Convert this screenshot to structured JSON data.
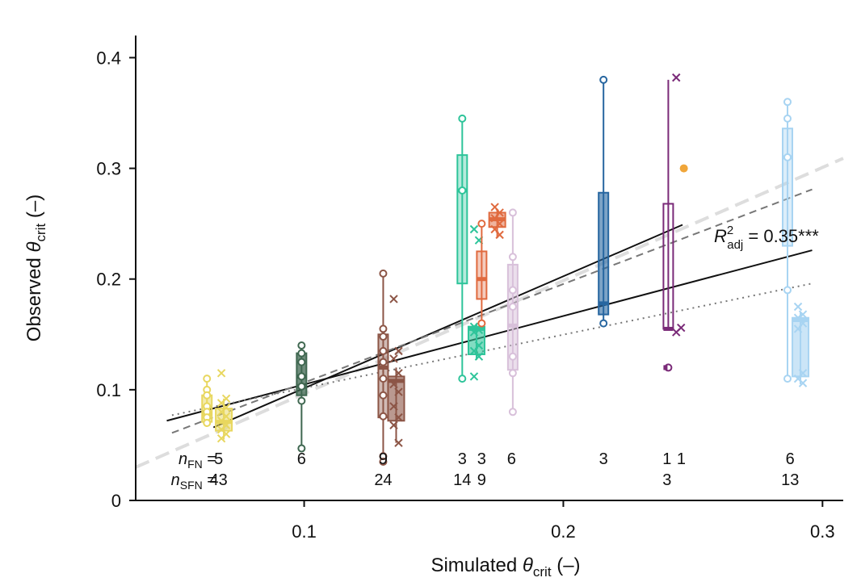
{
  "chart_data": {
    "type": "boxplot-scatter",
    "title": "",
    "xlabel": {
      "prefix": "Simulated ",
      "symbol": "θ",
      "sub": "crit",
      "suffix": " (–)"
    },
    "ylabel": {
      "prefix": "Observed ",
      "symbol": "θ",
      "sub": "crit",
      "suffix": " (–)"
    },
    "xlim": [
      0.035,
      0.308
    ],
    "ylim": [
      0,
      0.42
    ],
    "x_ticks": [
      {
        "value": 0.1,
        "label": "0.1"
      },
      {
        "value": 0.2,
        "label": "0.2"
      },
      {
        "value": 0.3,
        "label": "0.3"
      }
    ],
    "y_ticks": [
      {
        "value": 0,
        "label": "0"
      },
      {
        "value": 0.1,
        "label": "0.1"
      },
      {
        "value": 0.2,
        "label": "0.2"
      },
      {
        "value": 0.3,
        "label": "0.3"
      },
      {
        "value": 0.4,
        "label": "0.4"
      }
    ],
    "annotation": {
      "base": "R",
      "sup": "2",
      "sub": "adj",
      "text": " = 0.35***"
    },
    "count_row_labels": {
      "fn": {
        "base": "n",
        "sub": "FN",
        "eq": " ="
      },
      "sfn": {
        "base": "n",
        "sub": "SFN",
        "eq": " ="
      }
    },
    "counts": [
      {
        "x": 0.067,
        "fn": "5",
        "sfn": "43"
      },
      {
        "x": 0.099,
        "fn": "6",
        "sfn": ""
      },
      {
        "x": 0.1305,
        "fn": "9",
        "sfn": "24"
      },
      {
        "x": 0.161,
        "fn": "3",
        "sfn": "14"
      },
      {
        "x": 0.1685,
        "fn": "3",
        "sfn": "9"
      },
      {
        "x": 0.18,
        "fn": "6",
        "sfn": ""
      },
      {
        "x": 0.2155,
        "fn": "3",
        "sfn": ""
      },
      {
        "x": 0.24,
        "fn": "1",
        "sfn": "3"
      },
      {
        "x": 0.2455,
        "fn": "1",
        "sfn": ""
      },
      {
        "x": 0.2875,
        "fn": "6",
        "sfn": "13"
      }
    ],
    "series": [
      {
        "name": "group-1-FN",
        "color": "#e8d75f",
        "x": 0.0625,
        "kind": "FN",
        "box": [
          0.071,
          0.078,
          0.095
        ],
        "whisker": [
          0.07,
          0.11
        ],
        "points": [
          0.11,
          0.1,
          0.095,
          0.085,
          0.08,
          0.075,
          0.07
        ],
        "alpha": 0.5
      },
      {
        "name": "group-1-SFN",
        "color": "#e8d75f",
        "x": 0.069,
        "kind": "SFN",
        "box": [
          0.063,
          0.071,
          0.083
        ],
        "whisker": [
          0.055,
          0.092
        ],
        "points": [
          0.115,
          0.092,
          0.088,
          0.084,
          0.08,
          0.076,
          0.072,
          0.068,
          0.064,
          0.06,
          0.056
        ],
        "alpha": 0.5
      },
      {
        "name": "group-2-FN",
        "color": "#3f6750",
        "x": 0.099,
        "kind": "FN",
        "box": [
          0.095,
          0.112,
          0.133
        ],
        "whisker": [
          0.047,
          0.14
        ],
        "points": [
          0.14,
          0.133,
          0.125,
          0.112,
          0.103,
          0.09,
          0.047
        ],
        "alpha": 0.75
      },
      {
        "name": "group-3-FN",
        "color": "#8c5546",
        "x": 0.1305,
        "kind": "FN",
        "box": [
          0.075,
          0.12,
          0.15
        ],
        "whisker": [
          0.035,
          0.205
        ],
        "points": [
          0.205,
          0.155,
          0.148,
          0.135,
          0.125,
          0.11,
          0.095,
          0.076,
          0.04,
          0.035
        ],
        "alpha": 0.4
      },
      {
        "name": "group-3-SFN",
        "color": "#8c5546",
        "x": 0.1355,
        "kind": "SFN",
        "box": [
          0.072,
          0.108,
          0.112
        ],
        "whisker": [
          0.052,
          0.12
        ],
        "points": [
          0.182,
          0.135,
          0.128,
          0.115,
          0.105,
          0.098,
          0.085,
          0.075,
          0.068,
          0.052
        ],
        "alpha": 0.6
      },
      {
        "name": "group-4-FN",
        "color": "#2ec49a",
        "x": 0.161,
        "kind": "FN",
        "box": [
          0.196,
          0.28,
          0.312
        ],
        "whisker": [
          0.11,
          0.345
        ],
        "points": [
          0.345,
          0.28,
          0.11
        ],
        "alpha": 0.35
      },
      {
        "name": "group-4-SFN",
        "color": "#2ec49a",
        "x": 0.1665,
        "kind": "SFN",
        "box": [
          0.132,
          0.155,
          0.157
        ],
        "whisker": [
          0.127,
          0.16
        ],
        "points": [
          0.245,
          0.235,
          0.157,
          0.154,
          0.152,
          0.14,
          0.135,
          0.13,
          0.112
        ],
        "alpha": 0.6
      },
      {
        "name": "group-5-FN",
        "color": "#e06a3f",
        "x": 0.1685,
        "kind": "FN",
        "box": [
          0.182,
          0.2,
          0.225
        ],
        "whisker": [
          0.16,
          0.25
        ],
        "points": [
          0.25,
          0.16
        ],
        "alpha": 0.35
      },
      {
        "name": "group-5-SFN",
        "color": "#e06a3f",
        "x": 0.1745,
        "kind": "SFN",
        "box": [
          0.247,
          0.254,
          0.26
        ],
        "whisker": [
          0.237,
          0.262
        ],
        "points": [
          0.265,
          0.26,
          0.255,
          0.25,
          0.245,
          0.24
        ],
        "alpha": 0.5
      },
      {
        "name": "group-6-FN",
        "color": "#d8c0da",
        "x": 0.1805,
        "kind": "FN",
        "box": [
          0.118,
          0.158,
          0.213
        ],
        "whisker": [
          0.08,
          0.26
        ],
        "points": [
          0.26,
          0.22,
          0.19,
          0.175,
          0.13,
          0.115,
          0.08
        ],
        "alpha": 0.5
      },
      {
        "name": "group-7-FN",
        "color": "#2766a0",
        "x": 0.2155,
        "kind": "FN",
        "box": [
          0.168,
          0.178,
          0.278
        ],
        "whisker": [
          0.16,
          0.38
        ],
        "points": [
          0.38,
          0.16
        ],
        "alpha": 0.6
      },
      {
        "name": "group-8-FN",
        "color": "#7a2a78",
        "x": 0.2405,
        "kind": "FN",
        "box": [
          0.155,
          0.155,
          0.268
        ],
        "whisker": [
          0.155,
          0.38
        ],
        "points": [
          0.12
        ],
        "alpha": 0.0
      },
      {
        "name": "group-8-SFN",
        "color": "#7a2a78",
        "x": 0.2445,
        "kind": "SFN",
        "box": null,
        "whisker": null,
        "points": [
          0.382,
          0.156,
          0.152
        ],
        "alpha": 0.0
      },
      {
        "name": "group-9-FN",
        "color": "#f0a63a",
        "x": 0.2465,
        "kind": "single",
        "box": null,
        "whisker": null,
        "points": [
          0.3
        ],
        "alpha": 1.0
      },
      {
        "name": "group-10-FN",
        "color": "#a8d4f2",
        "x": 0.2865,
        "kind": "FN",
        "box": [
          0.23,
          0.31,
          0.336
        ],
        "whisker": [
          0.11,
          0.36
        ],
        "points": [
          0.36,
          0.345,
          0.31,
          0.19,
          0.11
        ],
        "alpha": 0.4
      },
      {
        "name": "group-10-SFN",
        "color": "#a8d4f2",
        "x": 0.2915,
        "kind": "SFN",
        "box": [
          0.112,
          0.163,
          0.165
        ],
        "whisker": [
          0.105,
          0.17
        ],
        "points": [
          0.175,
          0.168,
          0.165,
          0.16,
          0.155,
          0.115,
          0.11,
          0.106
        ],
        "alpha": 0.6
      }
    ],
    "lines": [
      {
        "name": "identity-line",
        "color": "#dddddd",
        "style": "longdash",
        "width": 4,
        "x": [
          0.035,
          0.308
        ],
        "y": [
          0.03,
          0.309
        ]
      },
      {
        "name": "fit-line-steep",
        "color": "#111111",
        "style": "solid",
        "width": 2,
        "x": [
          0.065,
          0.246
        ],
        "y": [
          0.066,
          0.249
        ]
      },
      {
        "name": "fit-line-shallow",
        "color": "#111111",
        "style": "solid",
        "width": 2,
        "x": [
          0.047,
          0.296
        ],
        "y": [
          0.072,
          0.226
        ]
      },
      {
        "name": "fit-line-dashed",
        "color": "#777777",
        "style": "dash",
        "width": 2,
        "x": [
          0.049,
          0.296
        ],
        "y": [
          0.061,
          0.281
        ]
      },
      {
        "name": "fit-line-dotted",
        "color": "#777777",
        "style": "dot",
        "width": 2,
        "x": [
          0.049,
          0.296
        ],
        "y": [
          0.077,
          0.196
        ]
      }
    ]
  }
}
